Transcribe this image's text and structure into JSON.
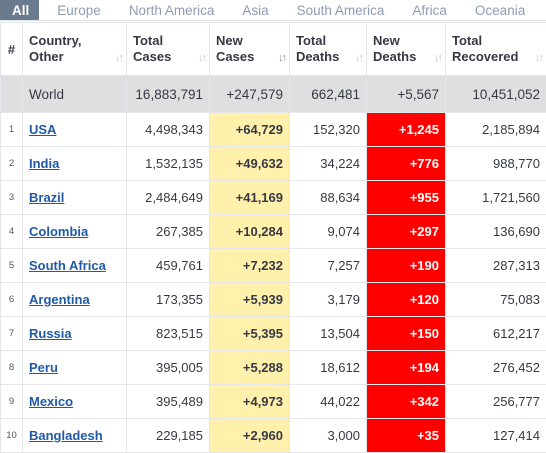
{
  "tabs": [
    {
      "label": "All"
    },
    {
      "label": "Europe"
    },
    {
      "label": "North America"
    },
    {
      "label": "Asia"
    },
    {
      "label": "South America"
    },
    {
      "label": "Africa"
    },
    {
      "label": "Oceania"
    }
  ],
  "headers": {
    "hash": "#",
    "country": [
      "Country,",
      "Other"
    ],
    "total_cases": [
      "Total",
      "Cases"
    ],
    "new_cases": [
      "New",
      "Cases"
    ],
    "total_deaths": [
      "Total",
      "Deaths"
    ],
    "new_deaths": [
      "New",
      "Deaths"
    ],
    "total_recovered": [
      "Total",
      "Recovered"
    ],
    "sort_icon": "↓↑",
    "sort_active_icon": "↓↑"
  },
  "world": {
    "name": "World",
    "total_cases": "16,883,791",
    "new_cases": "+247,579",
    "total_deaths": "662,481",
    "new_deaths": "+5,567",
    "total_recovered": "10,451,052"
  },
  "rows": [
    {
      "rank": "1",
      "country": "USA",
      "total_cases": "4,498,343",
      "new_cases": "+64,729",
      "total_deaths": "152,320",
      "new_deaths": "+1,245",
      "total_recovered": "2,185,894"
    },
    {
      "rank": "2",
      "country": "India",
      "total_cases": "1,532,135",
      "new_cases": "+49,632",
      "total_deaths": "34,224",
      "new_deaths": "+776",
      "total_recovered": "988,770"
    },
    {
      "rank": "3",
      "country": "Brazil",
      "total_cases": "2,484,649",
      "new_cases": "+41,169",
      "total_deaths": "88,634",
      "new_deaths": "+955",
      "total_recovered": "1,721,560"
    },
    {
      "rank": "4",
      "country": "Colombia",
      "total_cases": "267,385",
      "new_cases": "+10,284",
      "total_deaths": "9,074",
      "new_deaths": "+297",
      "total_recovered": "136,690"
    },
    {
      "rank": "5",
      "country": "South Africa",
      "total_cases": "459,761",
      "new_cases": "+7,232",
      "total_deaths": "7,257",
      "new_deaths": "+190",
      "total_recovered": "287,313"
    },
    {
      "rank": "6",
      "country": "Argentina",
      "total_cases": "173,355",
      "new_cases": "+5,939",
      "total_deaths": "3,179",
      "new_deaths": "+120",
      "total_recovered": "75,083"
    },
    {
      "rank": "7",
      "country": "Russia",
      "total_cases": "823,515",
      "new_cases": "+5,395",
      "total_deaths": "13,504",
      "new_deaths": "+150",
      "total_recovered": "612,217"
    },
    {
      "rank": "8",
      "country": "Peru",
      "total_cases": "395,005",
      "new_cases": "+5,288",
      "total_deaths": "18,612",
      "new_deaths": "+194",
      "total_recovered": "276,452"
    },
    {
      "rank": "9",
      "country": "Mexico",
      "total_cases": "395,489",
      "new_cases": "+4,973",
      "total_deaths": "44,022",
      "new_deaths": "+342",
      "total_recovered": "256,777"
    },
    {
      "rank": "10",
      "country": "Bangladesh",
      "total_cases": "229,185",
      "new_cases": "+2,960",
      "total_deaths": "3,000",
      "new_deaths": "+35",
      "total_recovered": "127,414"
    }
  ],
  "colors": {
    "tab_active_bg": "#6b7b8f",
    "new_cases_bg": "#fff1ab",
    "new_deaths_bg": "#ff0000",
    "world_row_bg": "#dfdfdf",
    "country_link": "#1f5aa8"
  }
}
